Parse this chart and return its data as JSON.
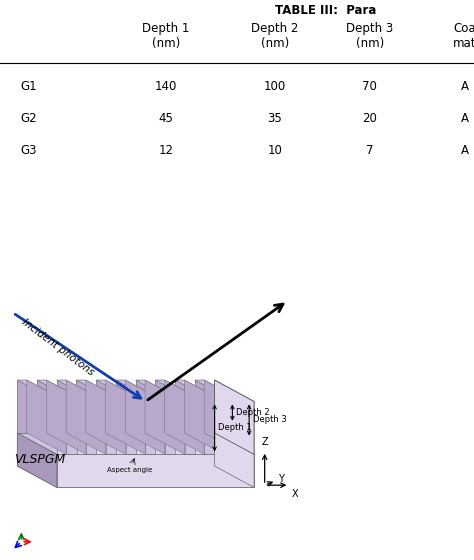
{
  "title": "TABLE III:  Para",
  "table_col_labels": [
    "Depth 1\n(nm)",
    "Depth 2\n(nm)",
    "Depth 3\n(nm)",
    "Coa\nmat"
  ],
  "table_rows": [
    [
      "G1",
      "140",
      "100",
      "70",
      "A"
    ],
    [
      "G2",
      "45",
      "35",
      "20",
      "A"
    ],
    [
      "G3",
      "12",
      "10",
      "7",
      "A"
    ]
  ],
  "grating_color_top": "#cfc3df",
  "grating_color_side": "#b8a8cc",
  "grating_color_front": "#e2d8ee",
  "grating_color_base_side": "#a898bc",
  "grating_color_bottom": "#b0a0c4",
  "bg_color": "#ffffff",
  "arrow_color_blue": "#1040b0",
  "arrow_color_black": "#000000",
  "label_incident": "Incident photons",
  "label_vlspgm": "VLSPGM",
  "label_aspect": "Aspect angle",
  "label_depth1": "Depth 1",
  "label_depth2": "Depth 2",
  "label_depth3": "Depth 3"
}
